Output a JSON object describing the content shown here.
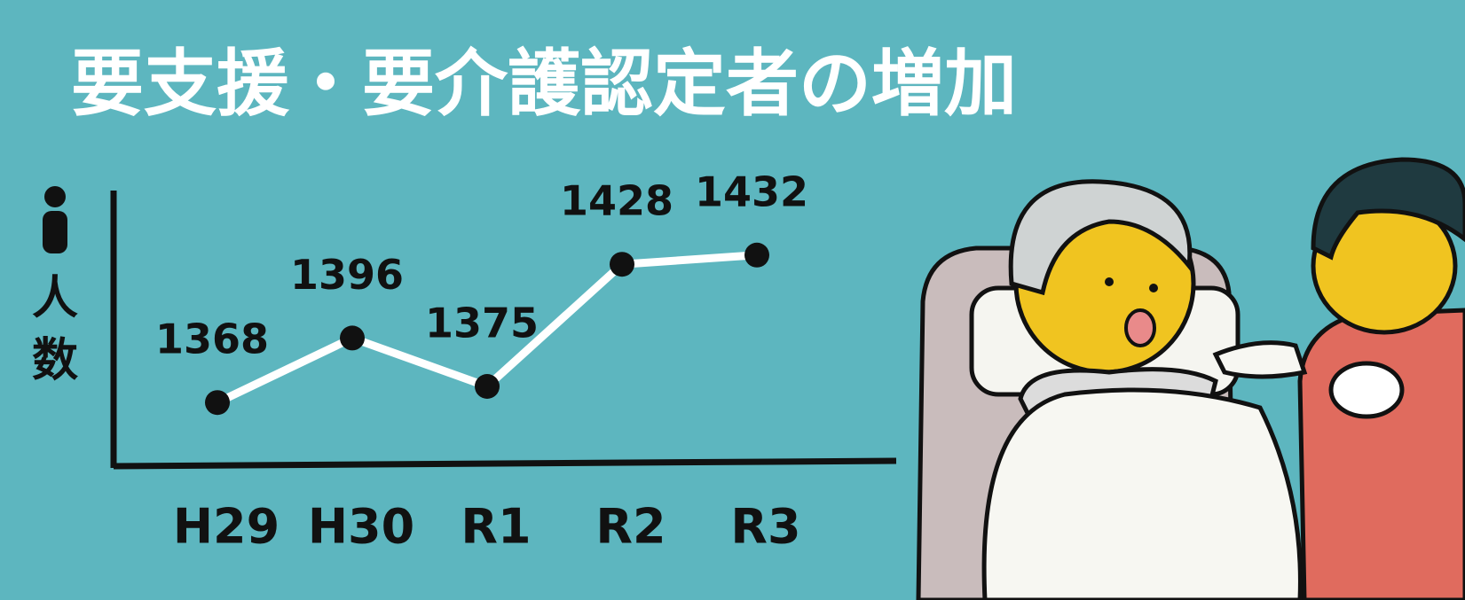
{
  "chart_data": {
    "type": "line",
    "title": "要支援・要介護認定者の増加",
    "y_label": "人数",
    "categories": [
      "H29",
      "H30",
      "R1",
      "R2",
      "R3"
    ],
    "values": [
      1368,
      1396,
      1375,
      1428,
      1432
    ],
    "color": "#ffffff",
    "marker_color": "#111111",
    "ylim": [
      1340,
      1460
    ],
    "grid": false
  }
}
